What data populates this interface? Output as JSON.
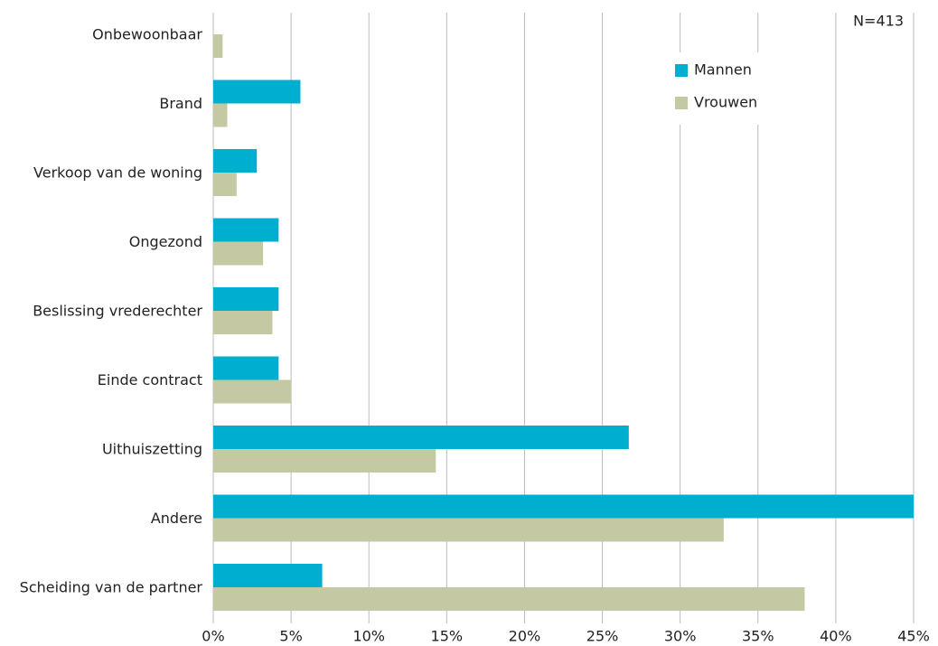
{
  "chart_data": {
    "type": "hbar",
    "annotation": "N=413",
    "categories": [
      "Onbewoonbaar",
      "Brand",
      "Verkoop van de woning",
      "Ongezond",
      "Beslissing vrederechter",
      "Einde contract",
      "Uithuiszetting",
      "Andere",
      "Scheiding van de partner"
    ],
    "series": [
      {
        "name": "Mannen",
        "color": "#00aecf",
        "values": [
          0,
          5.6,
          2.8,
          4.2,
          4.2,
          4.2,
          26.7,
          45,
          7.0
        ]
      },
      {
        "name": "Vrouwen",
        "color": "#c5c9a3",
        "values": [
          0.6,
          0.9,
          1.5,
          3.2,
          3.8,
          5.0,
          14.3,
          32.8,
          38.0
        ]
      }
    ],
    "xlim": [
      0,
      45
    ],
    "xticks": [
      {
        "value": 0,
        "label": "0%"
      },
      {
        "value": 5,
        "label": "5%"
      },
      {
        "value": 10,
        "label": "10%"
      },
      {
        "value": 15,
        "label": "15%"
      },
      {
        "value": 20,
        "label": "20%"
      },
      {
        "value": 25,
        "label": "25%"
      },
      {
        "value": 30,
        "label": "30%"
      },
      {
        "value": 35,
        "label": "35%"
      },
      {
        "value": 40,
        "label": "40%"
      },
      {
        "value": 45,
        "label": "45%"
      }
    ],
    "grid": true,
    "legend": "upper right"
  }
}
